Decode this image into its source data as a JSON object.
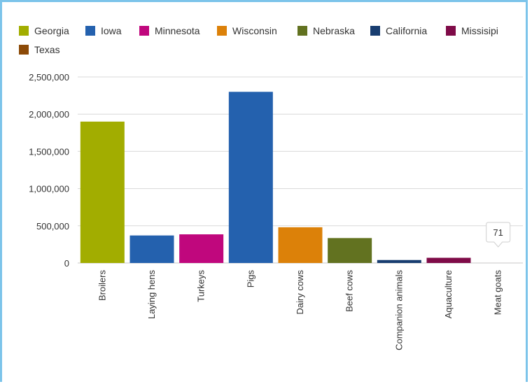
{
  "chart_data": {
    "type": "bar",
    "title": "",
    "xlabel": "",
    "ylabel": "",
    "ylim": [
      0,
      2500000
    ],
    "yticks": [
      0,
      500000,
      1000000,
      1500000,
      2000000,
      2500000
    ],
    "ytick_labels": [
      "0",
      "500,000",
      "1,000,000",
      "1,500,000",
      "2,000,000",
      "2,500,000"
    ],
    "grid": true,
    "legend_position": "top",
    "categories": [
      "Broilers",
      "Laying hens",
      "Turkeys",
      "Pigs",
      "Dairy cows",
      "Beef cows",
      "Companion animals",
      "Aquaculture",
      "Meat goats"
    ],
    "series": [
      {
        "name": "Georgia",
        "color": "#a2ad00",
        "category": "Broilers",
        "value": 1900000
      },
      {
        "name": "Iowa",
        "color": "#2461ae",
        "category": "Laying hens",
        "value": 370000
      },
      {
        "name": "Minnesota",
        "color": "#c0077d",
        "category": "Turkeys",
        "value": 385000
      },
      {
        "name": "Iowa",
        "color": "#2461ae",
        "category": "Pigs",
        "value": 2300000
      },
      {
        "name": "Wisconsin",
        "color": "#dc8109",
        "category": "Dairy cows",
        "value": 480000
      },
      {
        "name": "Nebraska",
        "color": "#627220",
        "category": "Beef cows",
        "value": 335000
      },
      {
        "name": "California",
        "color": "#183d70",
        "category": "Companion animals",
        "value": 40000
      },
      {
        "name": "Missisipi",
        "color": "#7f0b48",
        "category": "Aquaculture",
        "value": 70000
      },
      {
        "name": "Texas",
        "color": "#8c4a07",
        "category": "Meat goats",
        "value": 71
      }
    ],
    "legend": [
      {
        "name": "Georgia",
        "color": "#a2ad00"
      },
      {
        "name": "Iowa",
        "color": "#2461ae"
      },
      {
        "name": "Minnesota",
        "color": "#c0077d"
      },
      {
        "name": "Wisconsin",
        "color": "#dc8109"
      },
      {
        "name": "Nebraska",
        "color": "#627220"
      },
      {
        "name": "California",
        "color": "#183d70"
      },
      {
        "name": "Missisipi",
        "color": "#7f0b48"
      },
      {
        "name": "Texas",
        "color": "#8c4a07"
      }
    ],
    "tooltip": {
      "category": "Meat goats",
      "label": "71"
    }
  }
}
